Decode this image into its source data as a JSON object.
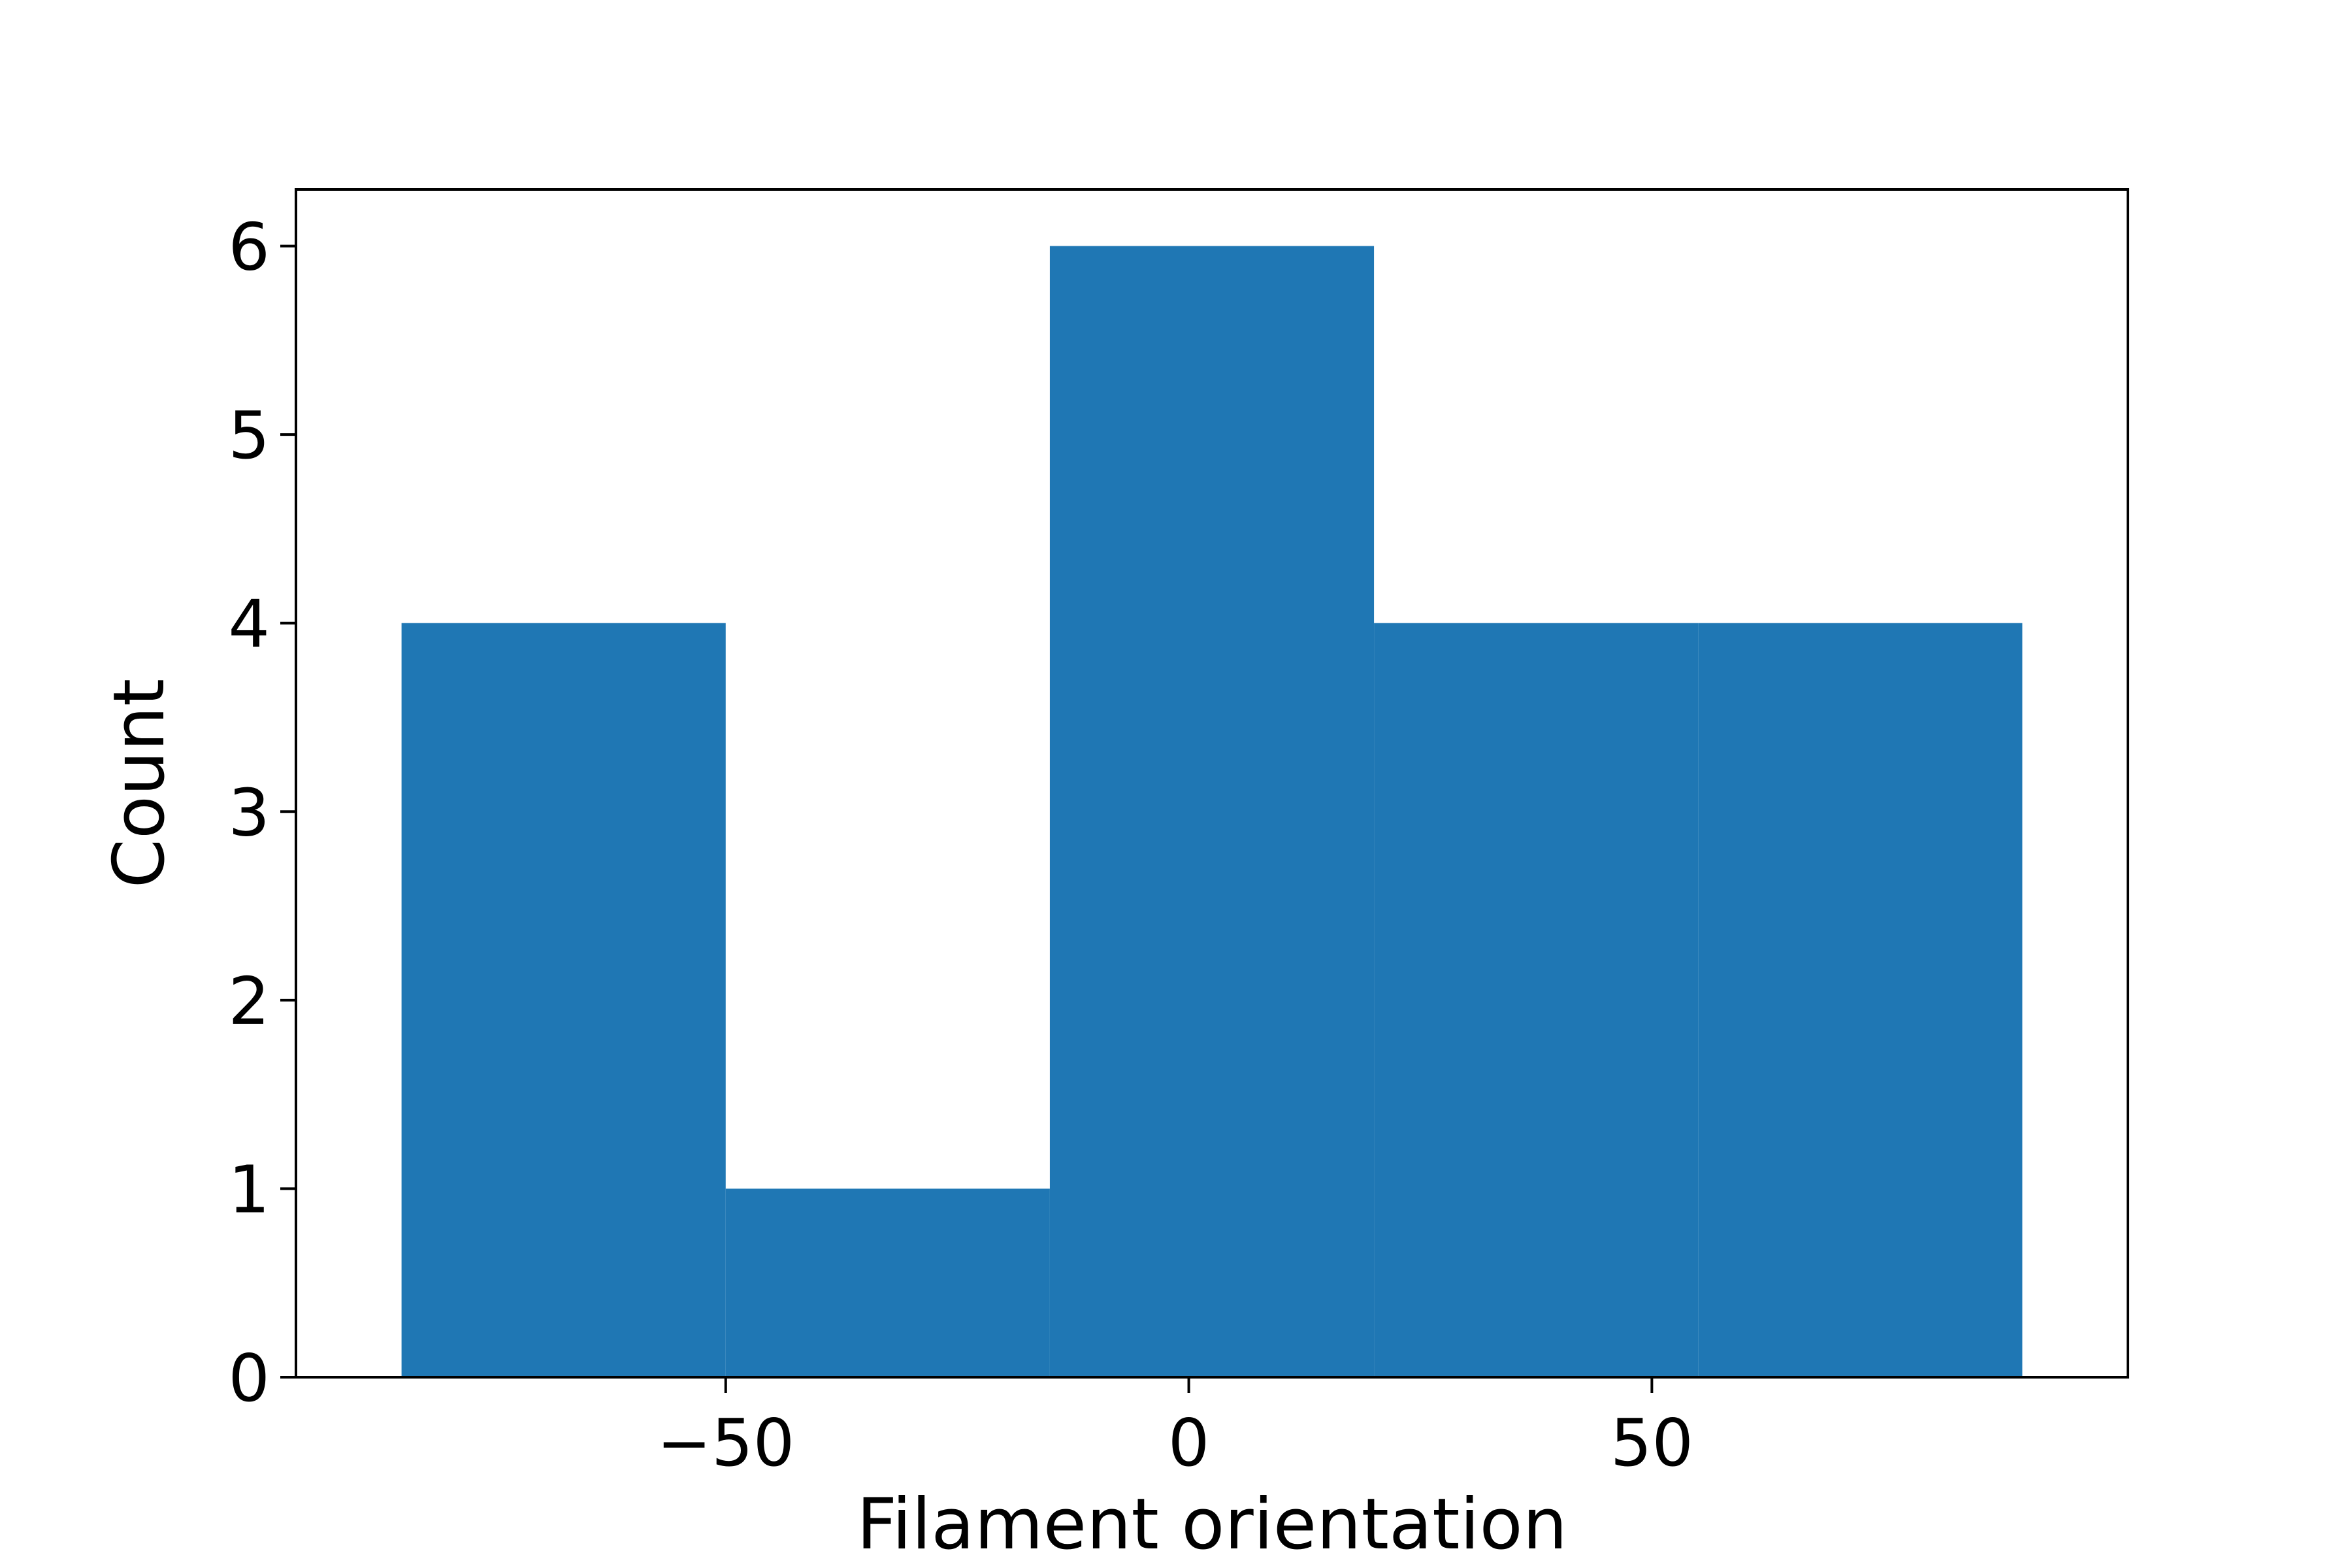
{
  "chart_data": {
    "type": "bar",
    "subtype": "histogram",
    "title": "",
    "xlabel": "Filament orientation",
    "ylabel": "Count",
    "bins": [
      {
        "x0": -85,
        "x1": -50,
        "value": 4
      },
      {
        "x0": -50,
        "x1": -15,
        "value": 1
      },
      {
        "x0": -15,
        "x1": 20,
        "value": 6
      },
      {
        "x0": 20,
        "x1": 55,
        "value": 4
      },
      {
        "x0": 55,
        "x1": 90,
        "value": 4
      }
    ],
    "xlim": [
      -96.4,
      101.4
    ],
    "ylim": [
      0,
      6.3
    ],
    "xticks": [
      {
        "value": -50,
        "label": "−50"
      },
      {
        "value": 0,
        "label": "0"
      },
      {
        "value": 50,
        "label": "50"
      }
    ],
    "yticks": [
      {
        "value": 0,
        "label": "0"
      },
      {
        "value": 1,
        "label": "1"
      },
      {
        "value": 2,
        "label": "2"
      },
      {
        "value": 3,
        "label": "3"
      },
      {
        "value": 4,
        "label": "4"
      },
      {
        "value": 5,
        "label": "5"
      },
      {
        "value": 6,
        "label": "6"
      }
    ],
    "bar_color": "#1f77b4",
    "grid": false,
    "legend": "none"
  }
}
